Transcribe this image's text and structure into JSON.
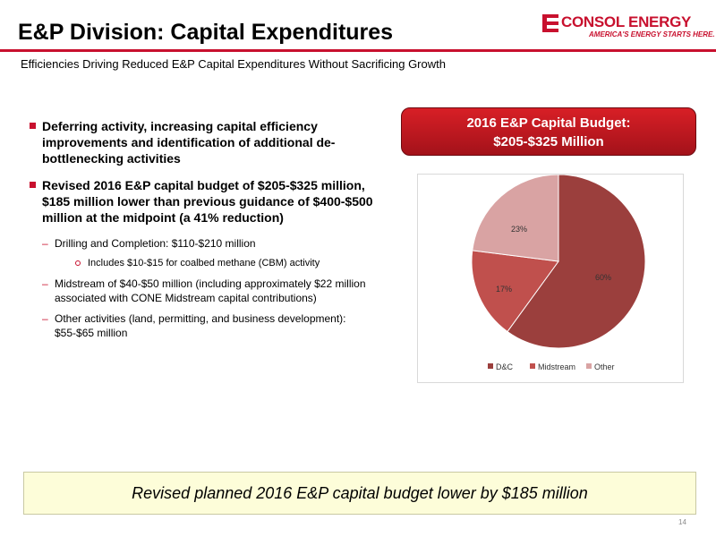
{
  "header": {
    "title": "E&P Division: Capital Expenditures",
    "subtitle": "Efficiencies Driving Reduced E&P Capital Expenditures Without Sacrificing Growth"
  },
  "logo": {
    "name": "CONSOL ENERGY",
    "tagline": "AMERICA'S ENERGY STARTS HERE."
  },
  "bullets": {
    "b1": "Deferring activity, increasing capital efficiency improvements and identification of additional de-bottlenecking activities",
    "b2": "Revised 2016 E&P capital budget of $205-$325 million, $185 million lower than previous guidance of $400-$500 million at the midpoint (a 41% reduction)",
    "sub1": "Drilling and Completion: $110-$210 million",
    "sub1a": "Includes $10-$15 for coalbed methane (CBM) activity",
    "sub2": "Midstream of $40-$50 million (including approximately $22 million associated with CONE Midstream capital contributions)",
    "sub3": "Other activities (land, permitting, and business development): $55-$65 million"
  },
  "budget_box": {
    "line1": "2016 E&P Capital Budget:",
    "line2": "$205-$325 Million"
  },
  "chart_data": {
    "type": "pie",
    "title": "",
    "slices": [
      {
        "label": "D&C",
        "value": 60,
        "display": "60%",
        "color": "#9b3f3d"
      },
      {
        "label": "Midstream",
        "value": 17,
        "display": "17%",
        "color": "#c0504d"
      },
      {
        "label": "Other",
        "value": 23,
        "display": "23%",
        "color": "#d9a3a3"
      }
    ],
    "legend_position": "bottom"
  },
  "callout": "Revised planned 2016 E&P capital budget lower by $185 million",
  "page_number": "14"
}
